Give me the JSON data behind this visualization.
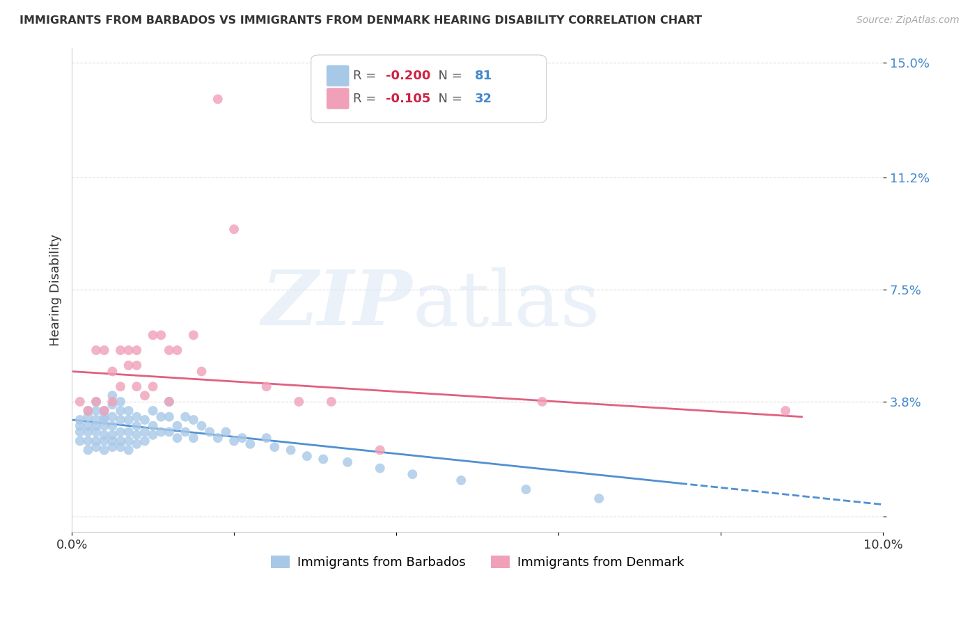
{
  "title": "IMMIGRANTS FROM BARBADOS VS IMMIGRANTS FROM DENMARK HEARING DISABILITY CORRELATION CHART",
  "source": "Source: ZipAtlas.com",
  "ylabel": "Hearing Disability",
  "xlim": [
    0.0,
    0.1
  ],
  "ylim": [
    -0.005,
    0.155
  ],
  "ytick_positions": [
    0.0,
    0.038,
    0.075,
    0.112,
    0.15
  ],
  "ytick_labels": [
    "",
    "3.8%",
    "7.5%",
    "11.2%",
    "15.0%"
  ],
  "xtick_positions": [
    0.0,
    0.02,
    0.04,
    0.06,
    0.08,
    0.1
  ],
  "xtick_labels": [
    "0.0%",
    "",
    "",
    "",
    "",
    "10.0%"
  ],
  "barbados_color": "#a8c8e8",
  "denmark_color": "#f0a0b8",
  "trend_barbados_color": "#5090d0",
  "trend_denmark_color": "#e06080",
  "background_color": "#ffffff",
  "grid_color": "#dddddd",
  "r_color": "#cc2244",
  "n_color": "#4488cc",
  "barbados_x": [
    0.001,
    0.001,
    0.001,
    0.001,
    0.002,
    0.002,
    0.002,
    0.002,
    0.002,
    0.002,
    0.003,
    0.003,
    0.003,
    0.003,
    0.003,
    0.003,
    0.003,
    0.004,
    0.004,
    0.004,
    0.004,
    0.004,
    0.004,
    0.004,
    0.005,
    0.005,
    0.005,
    0.005,
    0.005,
    0.005,
    0.005,
    0.006,
    0.006,
    0.006,
    0.006,
    0.006,
    0.006,
    0.007,
    0.007,
    0.007,
    0.007,
    0.007,
    0.008,
    0.008,
    0.008,
    0.008,
    0.009,
    0.009,
    0.009,
    0.01,
    0.01,
    0.01,
    0.011,
    0.011,
    0.012,
    0.012,
    0.012,
    0.013,
    0.013,
    0.014,
    0.014,
    0.015,
    0.015,
    0.016,
    0.017,
    0.018,
    0.019,
    0.02,
    0.021,
    0.022,
    0.024,
    0.025,
    0.027,
    0.029,
    0.031,
    0.034,
    0.038,
    0.042,
    0.048,
    0.056,
    0.065
  ],
  "barbados_y": [
    0.03,
    0.028,
    0.032,
    0.025,
    0.033,
    0.03,
    0.028,
    0.035,
    0.025,
    0.022,
    0.032,
    0.03,
    0.028,
    0.025,
    0.023,
    0.035,
    0.038,
    0.033,
    0.03,
    0.027,
    0.025,
    0.022,
    0.035,
    0.032,
    0.04,
    0.037,
    0.033,
    0.03,
    0.027,
    0.025,
    0.023,
    0.038,
    0.035,
    0.032,
    0.028,
    0.025,
    0.023,
    0.035,
    0.032,
    0.028,
    0.025,
    0.022,
    0.033,
    0.03,
    0.027,
    0.024,
    0.032,
    0.028,
    0.025,
    0.035,
    0.03,
    0.027,
    0.033,
    0.028,
    0.038,
    0.033,
    0.028,
    0.03,
    0.026,
    0.033,
    0.028,
    0.032,
    0.026,
    0.03,
    0.028,
    0.026,
    0.028,
    0.025,
    0.026,
    0.024,
    0.026,
    0.023,
    0.022,
    0.02,
    0.019,
    0.018,
    0.016,
    0.014,
    0.012,
    0.009,
    0.006
  ],
  "denmark_x": [
    0.001,
    0.002,
    0.003,
    0.003,
    0.004,
    0.004,
    0.005,
    0.005,
    0.006,
    0.006,
    0.007,
    0.007,
    0.008,
    0.008,
    0.008,
    0.009,
    0.01,
    0.01,
    0.011,
    0.012,
    0.012,
    0.013,
    0.015,
    0.016,
    0.018,
    0.02,
    0.024,
    0.028,
    0.032,
    0.038,
    0.058,
    0.088
  ],
  "denmark_y": [
    0.038,
    0.035,
    0.055,
    0.038,
    0.055,
    0.035,
    0.048,
    0.038,
    0.055,
    0.043,
    0.055,
    0.05,
    0.055,
    0.05,
    0.043,
    0.04,
    0.06,
    0.043,
    0.06,
    0.055,
    0.038,
    0.055,
    0.06,
    0.048,
    0.138,
    0.095,
    0.043,
    0.038,
    0.038,
    0.022,
    0.038,
    0.035
  ],
  "trend_barbados_x0": 0.0,
  "trend_barbados_x1": 0.1,
  "trend_barbados_y0": 0.032,
  "trend_barbados_y1": 0.004,
  "trend_barbados_dash_from": 0.075,
  "trend_denmark_x0": 0.0,
  "trend_denmark_x1": 0.09,
  "trend_denmark_y0": 0.048,
  "trend_denmark_y1": 0.033,
  "legend_r1": "-0.200",
  "legend_n1": "81",
  "legend_r2": "-0.105",
  "legend_n2": "32",
  "legend_label1": "Immigrants from Barbados",
  "legend_label2": "Immigrants from Denmark"
}
